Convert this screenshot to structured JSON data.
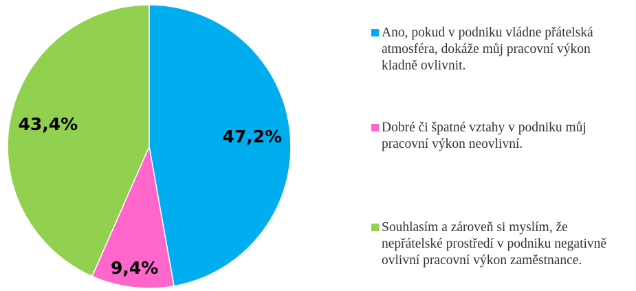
{
  "chart_data": {
    "type": "pie",
    "categories": [
      "Ano, pokud v podniku vládne přátelská atmosféra, dokáže můj pracovní výkon kladně ovlivnit.",
      "Dobré či špatné vztahy v podniku můj pracovní výkon neovlivní.",
      "Souhlasím a zároveň si myslím, že nepřátelské prostředí v podniku negativně ovlivní pracovní výkon zaměstnance."
    ],
    "values": [
      47.2,
      9.4,
      43.4
    ],
    "value_labels": [
      "47,2%",
      "9,4%",
      "43,4%"
    ],
    "colors": [
      "#00aeef",
      "#ff66cc",
      "#92d050"
    ],
    "legend": "right"
  }
}
